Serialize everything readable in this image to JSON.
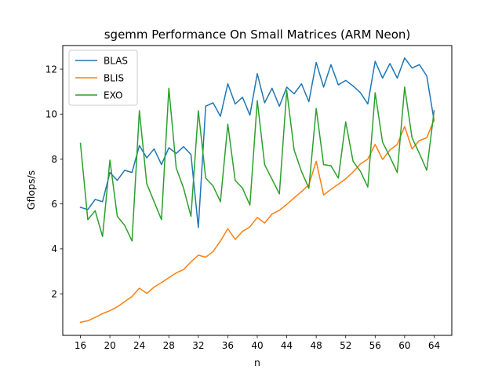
{
  "chart_data": {
    "type": "line",
    "title": "sgemm Performance On Small Matrices (ARM Neon)",
    "xlabel": "n",
    "ylabel": "Gflops/s",
    "xlim": [
      13.6,
      66.4
    ],
    "ylim": [
      0.15,
      13.05
    ],
    "xticks": [
      16,
      20,
      24,
      28,
      32,
      36,
      40,
      44,
      48,
      52,
      56,
      60,
      64
    ],
    "yticks": [
      2,
      4,
      6,
      8,
      10,
      12
    ],
    "grid": false,
    "legend_position": "top-left",
    "x": [
      16,
      17,
      18,
      19,
      20,
      21,
      22,
      23,
      24,
      25,
      26,
      27,
      28,
      29,
      30,
      31,
      32,
      33,
      34,
      35,
      36,
      37,
      38,
      39,
      40,
      41,
      42,
      43,
      44,
      45,
      46,
      47,
      48,
      49,
      50,
      51,
      52,
      53,
      54,
      55,
      56,
      57,
      58,
      59,
      60,
      61,
      62,
      63,
      64
    ],
    "series": [
      {
        "name": "BLAS",
        "color": "#1f77b4",
        "values": [
          5.85,
          5.75,
          6.2,
          6.1,
          7.4,
          7.05,
          7.5,
          7.4,
          8.6,
          8.05,
          8.45,
          7.75,
          8.5,
          8.25,
          8.55,
          8.2,
          4.95,
          10.35,
          10.5,
          9.9,
          11.35,
          10.45,
          10.75,
          9.95,
          11.8,
          10.5,
          11.15,
          10.35,
          11.2,
          10.9,
          11.35,
          10.55,
          12.3,
          11.2,
          12.2,
          11.3,
          11.5,
          11.25,
          10.95,
          10.45,
          12.35,
          11.6,
          12.25,
          11.6,
          12.5,
          12.05,
          12.2,
          11.7,
          9.7
        ]
      },
      {
        "name": "BLIS",
        "color": "#ff7f0e",
        "values": [
          0.73,
          0.8,
          0.95,
          1.12,
          1.25,
          1.42,
          1.65,
          1.88,
          2.25,
          2.02,
          2.3,
          2.5,
          2.72,
          2.93,
          3.08,
          3.42,
          3.72,
          3.63,
          3.88,
          4.35,
          4.9,
          4.42,
          4.78,
          4.98,
          5.4,
          5.15,
          5.55,
          5.72,
          5.98,
          6.27,
          6.55,
          6.85,
          7.9,
          6.4,
          6.65,
          6.88,
          7.12,
          7.42,
          7.78,
          8.0,
          8.65,
          7.98,
          8.4,
          8.65,
          9.45,
          8.45,
          8.82,
          8.95,
          9.75
        ]
      },
      {
        "name": "EXO",
        "color": "#2ca02c",
        "values": [
          8.7,
          5.3,
          5.7,
          4.55,
          7.95,
          5.45,
          5.05,
          4.35,
          10.15,
          6.9,
          6.1,
          5.3,
          11.15,
          7.6,
          6.7,
          5.45,
          10.15,
          7.15,
          6.8,
          6.1,
          9.55,
          7.05,
          6.7,
          5.95,
          10.6,
          7.75,
          7.1,
          6.45,
          11.05,
          8.4,
          7.45,
          6.7,
          10.25,
          7.75,
          7.7,
          7.15,
          9.65,
          7.9,
          7.45,
          6.75,
          10.95,
          8.75,
          8.1,
          7.4,
          11.2,
          8.95,
          8.25,
          7.5,
          10.15
        ]
      }
    ]
  }
}
